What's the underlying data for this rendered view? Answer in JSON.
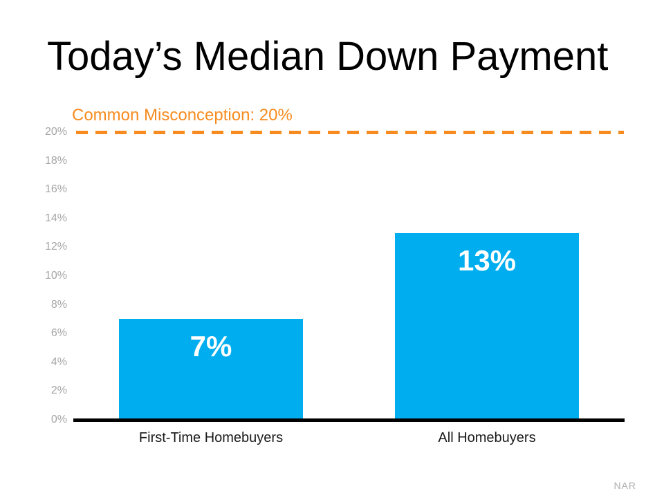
{
  "page": {
    "background_color": "#ffffff"
  },
  "title": "Today’s Median Down Payment",
  "source": "NAR",
  "colors": {
    "bar_blue": "#00aeef",
    "annotation_orange": "#f78b1f",
    "tick_gray": "#a5a5a5",
    "axis_black": "#000000",
    "bar_label_white": "#ffffff"
  },
  "chart_data": {
    "type": "bar",
    "title": "Today’s Median Down Payment",
    "categories": [
      "First-Time Homebuyers",
      "All Homebuyers"
    ],
    "values": [
      7,
      13
    ],
    "data_labels": [
      "7%",
      "13%"
    ],
    "xlabel": "",
    "ylabel": "",
    "ylim": [
      0,
      20
    ],
    "ytick_step": 2,
    "yticks": [
      {
        "value": 0,
        "label": "0%"
      },
      {
        "value": 2,
        "label": "2%"
      },
      {
        "value": 4,
        "label": "4%"
      },
      {
        "value": 6,
        "label": "6%"
      },
      {
        "value": 8,
        "label": "8%"
      },
      {
        "value": 10,
        "label": "10%"
      },
      {
        "value": 12,
        "label": "12%"
      },
      {
        "value": 14,
        "label": "14%"
      },
      {
        "value": 16,
        "label": "16%"
      },
      {
        "value": 18,
        "label": "18%"
      },
      {
        "value": 20,
        "label": "20%"
      }
    ],
    "grid": false,
    "legend": false,
    "reference_line": {
      "value": 20,
      "label": "Common Misconception: 20%",
      "color": "#f78b1f",
      "style": "dashed"
    }
  }
}
